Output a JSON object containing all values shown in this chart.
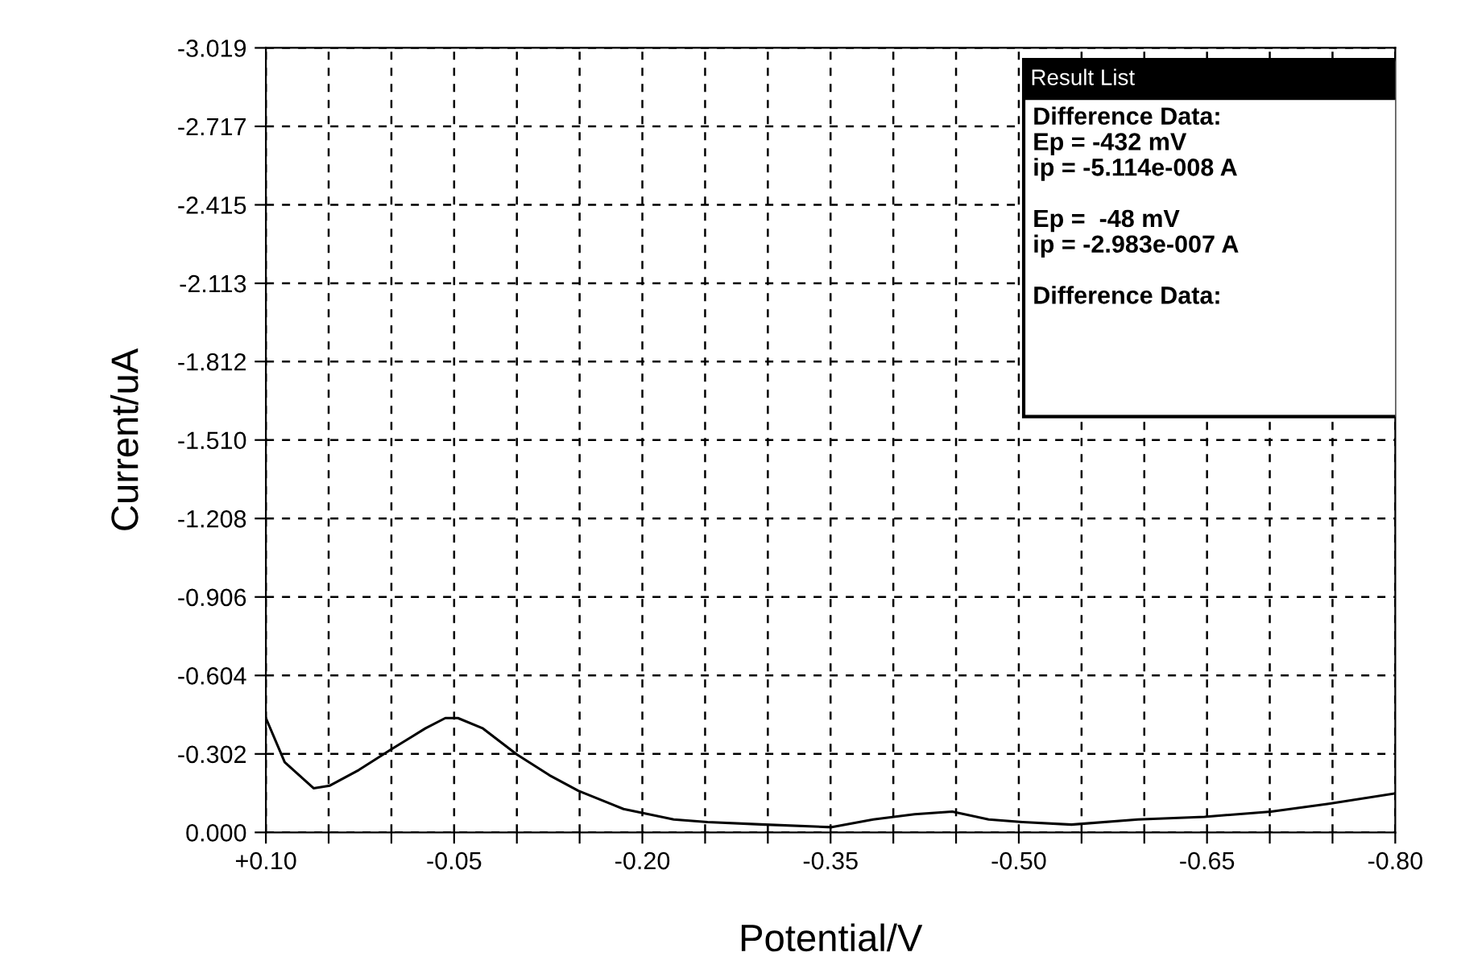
{
  "chart_data": {
    "type": "line",
    "xlabel": "Potential/V",
    "ylabel": "Current/uA",
    "x": [
      0.1,
      0.085,
      0.062,
      0.049,
      0.026,
      0.0,
      -0.027,
      -0.043,
      -0.053,
      -0.073,
      -0.1,
      -0.126,
      -0.149,
      -0.185,
      -0.225,
      -0.252,
      -0.298,
      -0.351,
      -0.384,
      -0.417,
      -0.447,
      -0.476,
      -0.503,
      -0.542,
      -0.595,
      -0.648,
      -0.701,
      -0.747,
      -0.8
    ],
    "series": [
      {
        "color": "#000000",
        "values": [
          -0.44,
          -0.27,
          -0.17,
          -0.18,
          -0.24,
          -0.32,
          -0.4,
          -0.44,
          -0.44,
          -0.4,
          -0.3,
          -0.22,
          -0.16,
          -0.09,
          -0.05,
          -0.04,
          -0.03,
          -0.02,
          -0.05,
          -0.07,
          -0.08,
          -0.05,
          -0.04,
          -0.03,
          -0.05,
          -0.06,
          -0.08,
          -0.11,
          -0.15
        ]
      }
    ],
    "xlim": [
      0.1,
      -0.8
    ],
    "xticks": [
      {
        "value": 0.1,
        "label": "+0.10"
      },
      {
        "value": 0.05,
        "label": null
      },
      {
        "value": 0.0,
        "label": null
      },
      -0.05,
      {
        "value": -0.1,
        "label": null
      },
      {
        "value": -0.15,
        "label": null
      },
      {
        "value": -0.2,
        "label": "-0.20"
      },
      {
        "value": -0.25,
        "label": null
      },
      {
        "value": -0.3,
        "label": null
      },
      -0.35,
      {
        "value": -0.4,
        "label": null
      },
      {
        "value": -0.45,
        "label": null
      },
      {
        "value": -0.5,
        "label": "-0.50"
      },
      {
        "value": -0.55,
        "label": null
      },
      {
        "value": -0.6,
        "label": null
      },
      -0.65,
      {
        "value": -0.7,
        "label": null
      },
      {
        "value": -0.75,
        "label": null
      },
      {
        "value": -0.8,
        "label": "-0.80"
      }
    ],
    "ylim": [
      0,
      -3.019
    ],
    "yticks": [
      {
        "value": 0,
        "label": "0.000"
      },
      -0.302,
      -0.604,
      -0.906,
      -1.208,
      {
        "value": -1.51,
        "label": "-1.510"
      },
      -1.812,
      -2.113,
      -2.415,
      -2.717,
      -3.019
    ],
    "grid": true,
    "line_style": "solid",
    "legend": false,
    "annotations": [
      "Result List",
      "Difference Data:\nEp = -432 mV\nip = -5.114e-008 A\n\nEp =  -48 mV\nip = -2.983e-007 A\n\nDifference Data:"
    ]
  }
}
